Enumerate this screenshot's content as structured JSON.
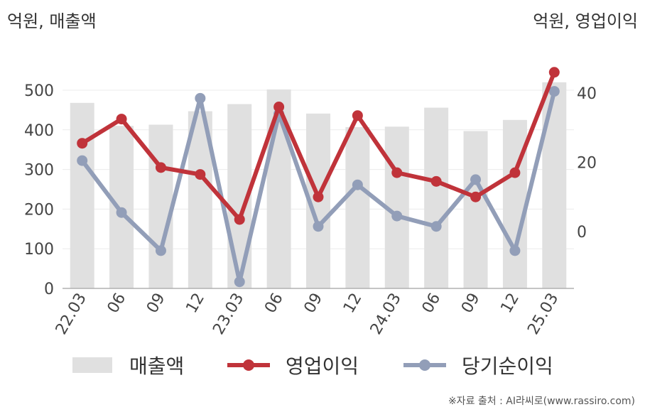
{
  "header": {
    "left_unit": "억원, 매출액",
    "right_unit": "억원, 영업이익"
  },
  "chart_data": {
    "type": "bar+line",
    "categories": [
      "22.03",
      "06",
      "09",
      "12",
      "23.03",
      "06",
      "09",
      "12",
      "24.03",
      "06",
      "09",
      "12",
      "25.03"
    ],
    "series": [
      {
        "name": "매출액",
        "type": "bar",
        "axis": "left",
        "color": "#e0e0e0",
        "values": [
          468,
          410,
          413,
          447,
          465,
          502,
          441,
          407,
          408,
          456,
          397,
          425,
          520
        ]
      },
      {
        "name": "영업이익",
        "type": "line",
        "axis": "right",
        "color": "#c0333a",
        "values": [
          25.5,
          32.5,
          18.5,
          16.5,
          3.5,
          36,
          10,
          33.5,
          17,
          14.5,
          10,
          17,
          46
        ]
      },
      {
        "name": "당기순이익",
        "type": "line",
        "axis": "right",
        "color": "#929eb8",
        "values": [
          20.5,
          5.5,
          -5.5,
          38.5,
          -14.5,
          34,
          1.5,
          13.5,
          4.5,
          1.5,
          15,
          -5.5,
          40.5
        ]
      }
    ],
    "left_axis": {
      "ticks": [
        0,
        100,
        200,
        300,
        400,
        500
      ],
      "ylim": [
        0,
        500
      ]
    },
    "right_axis": {
      "ticks": [
        0,
        20,
        40
      ],
      "ylim": [
        -17,
        41
      ]
    },
    "grid": true,
    "legend_position": "bottom"
  },
  "legend": {
    "items": [
      {
        "label": "매출액",
        "kind": "bar",
        "color": "#e0e0e0"
      },
      {
        "label": "영업이익",
        "kind": "line",
        "color": "#c0333a"
      },
      {
        "label": "당기순이익",
        "kind": "line",
        "color": "#929eb8"
      }
    ]
  },
  "source": "※자료 출처 : AI라씨로(www.rassiro.com)"
}
